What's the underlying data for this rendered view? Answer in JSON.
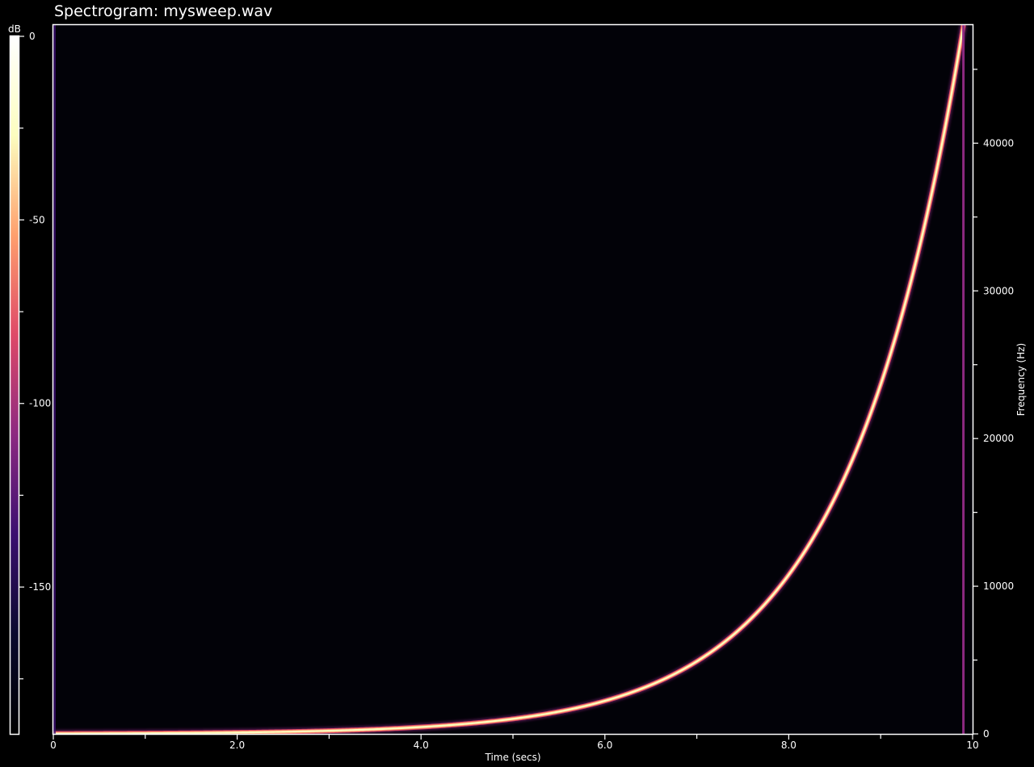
{
  "chart_data": {
    "type": "heatmap",
    "title": "Spectrogram: mysweep.wav",
    "xlabel": "Time (secs)",
    "ylabel": "Frequency (Hz)",
    "xlim": [
      0,
      10
    ],
    "ylim": [
      0,
      48000
    ],
    "x_tick_labels": [
      {
        "value": 0,
        "label": "0"
      },
      {
        "value": 2,
        "label": "2.0"
      },
      {
        "value": 4,
        "label": "4.0"
      },
      {
        "value": 6,
        "label": "6.0"
      },
      {
        "value": 8,
        "label": "8.0"
      },
      {
        "value": 10,
        "label": "10"
      }
    ],
    "x_minor_ticks": [
      1,
      3,
      5,
      7,
      9
    ],
    "y_tick_labels": [
      {
        "value": 0,
        "label": "0"
      },
      {
        "value": 10000,
        "label": "10000"
      },
      {
        "value": 20000,
        "label": "20000"
      },
      {
        "value": 30000,
        "label": "30000"
      },
      {
        "value": 40000,
        "label": "40000"
      }
    ],
    "y_minor_ticks": [
      5000,
      15000,
      25000,
      35000,
      45000
    ],
    "colorbar": {
      "unit_label": "dB",
      "range": [
        -190,
        0
      ],
      "tick_labels": [
        {
          "value": 0,
          "label": "0"
        },
        {
          "value": -50,
          "label": "-50"
        },
        {
          "value": -100,
          "label": "-100"
        },
        {
          "value": -150,
          "label": "-150"
        }
      ],
      "minor_ticks": [
        -25,
        -75,
        -125,
        -175
      ],
      "colors": [
        "#000000",
        "#0a0a2e",
        "#3b0f70",
        "#8c2981",
        "#de4968",
        "#fe9f6d",
        "#fcfdbf",
        "#ffffff"
      ]
    },
    "sweep": {
      "type": "exponential",
      "start_time": 0,
      "end_time": 9.9,
      "start_freq": 20,
      "end_freq": 48000
    },
    "grid": false
  }
}
